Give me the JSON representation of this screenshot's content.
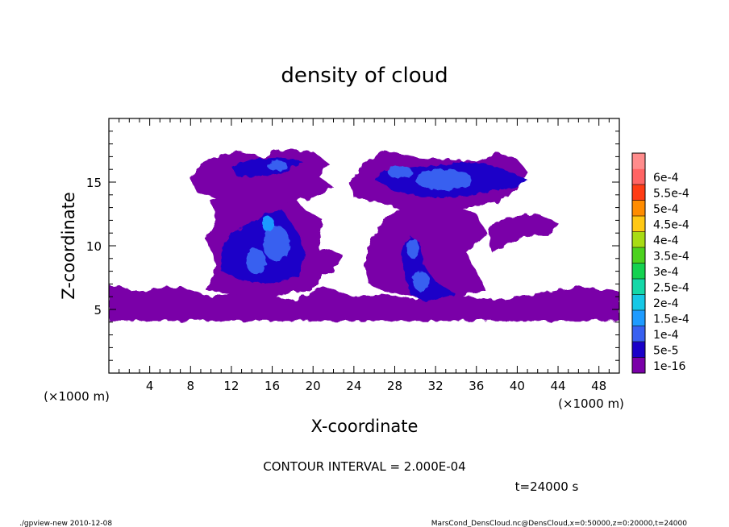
{
  "chart_data": {
    "type": "heatmap",
    "title": "density of cloud",
    "xlabel": "X-coordinate",
    "ylabel": "Z-coordinate",
    "x_unit_left": "(×1000 m)",
    "x_unit_right": "(×1000 m)",
    "xlim": [
      0,
      50
    ],
    "ylim": [
      0,
      20
    ],
    "x_ticks": [
      "4",
      "8",
      "12",
      "16",
      "20",
      "24",
      "28",
      "32",
      "36",
      "40",
      "44",
      "48"
    ],
    "y_ticks": [
      "5",
      "10",
      "15"
    ],
    "legend_labels": [
      "1e-16",
      "5e-5",
      "1e-4",
      "1.5e-4",
      "2e-4",
      "2.5e-4",
      "3e-4",
      "3.5e-4",
      "4e-4",
      "4.5e-4",
      "5e-4",
      "5.5e-4",
      "6e-4"
    ],
    "legend_colors": [
      "#7a00a8",
      "#1a00c8",
      "#3860f0",
      "#1e9bff",
      "#16c8e6",
      "#14d8a8",
      "#14d250",
      "#4cd21e",
      "#a8dc14",
      "#ffc814",
      "#ff8c00",
      "#ff3c14",
      "#ff6464",
      "#ff8c8c"
    ],
    "contour_interval": "CONTOUR INTERVAL = 2.000E-04",
    "time_label": "t=24000 s",
    "regions": [
      {
        "name": "bottom layer",
        "x": [
          0,
          50
        ],
        "z": [
          4,
          7
        ],
        "level": "1e-16"
      },
      {
        "name": "left column",
        "x": [
          9,
          21
        ],
        "z": [
          6,
          17.5
        ],
        "level": "1e-16"
      },
      {
        "name": "left upper sheet",
        "x": [
          8,
          22
        ],
        "z": [
          13.5,
          17.5
        ],
        "level": "1e-16"
      },
      {
        "name": "right upper sheet",
        "x": [
          23,
          41
        ],
        "z": [
          13,
          17.5
        ],
        "level": "1e-16"
      },
      {
        "name": "right column",
        "x": [
          25,
          38
        ],
        "z": [
          5,
          15
        ],
        "level": "1e-16"
      },
      {
        "name": "left core",
        "x": [
          11,
          19
        ],
        "z": [
          7,
          13
        ],
        "level": "5e-5 to 1.5e-4"
      },
      {
        "name": "upper right core",
        "x": [
          26,
          41
        ],
        "z": [
          13.5,
          16.5
        ],
        "level": "5e-5 to 1e-4"
      },
      {
        "name": "right column core",
        "x": [
          28,
          34
        ],
        "z": [
          5.5,
          11
        ],
        "level": "5e-5 to 1e-4"
      }
    ]
  },
  "footer": {
    "left": "./gpview-new   2010-12-08",
    "right": "MarsCond_DensCloud.nc@DensCloud,x=0:50000,z=0:20000,t=24000"
  }
}
